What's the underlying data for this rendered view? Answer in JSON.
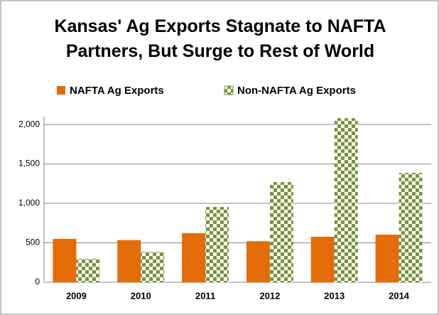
{
  "chart_data": {
    "type": "bar",
    "title": "Kansas' Ag Exports Stagnate to NAFTA Partners, But Surge to Rest of World",
    "categories": [
      "2009",
      "2010",
      "2011",
      "2012",
      "2013",
      "2014"
    ],
    "series": [
      {
        "name": "NAFTA Ag Exports",
        "color": "#e36c09",
        "pattern": "solid",
        "values": [
          550,
          535,
          622,
          520,
          577,
          604
        ]
      },
      {
        "name": "Non-NAFTA Ag Exports",
        "color": "#77933c",
        "pattern": "checker",
        "values": [
          297,
          387,
          955,
          1270,
          2080,
          1387
        ]
      }
    ],
    "ylim": [
      0,
      2100
    ],
    "yticks": [
      0,
      500,
      {
        "value": 1000,
        "label": "1,000"
      },
      {
        "value": 1500,
        "label": "1,500"
      },
      {
        "value": 2000,
        "label": "2,000"
      }
    ],
    "grid": true,
    "legend": "top"
  }
}
